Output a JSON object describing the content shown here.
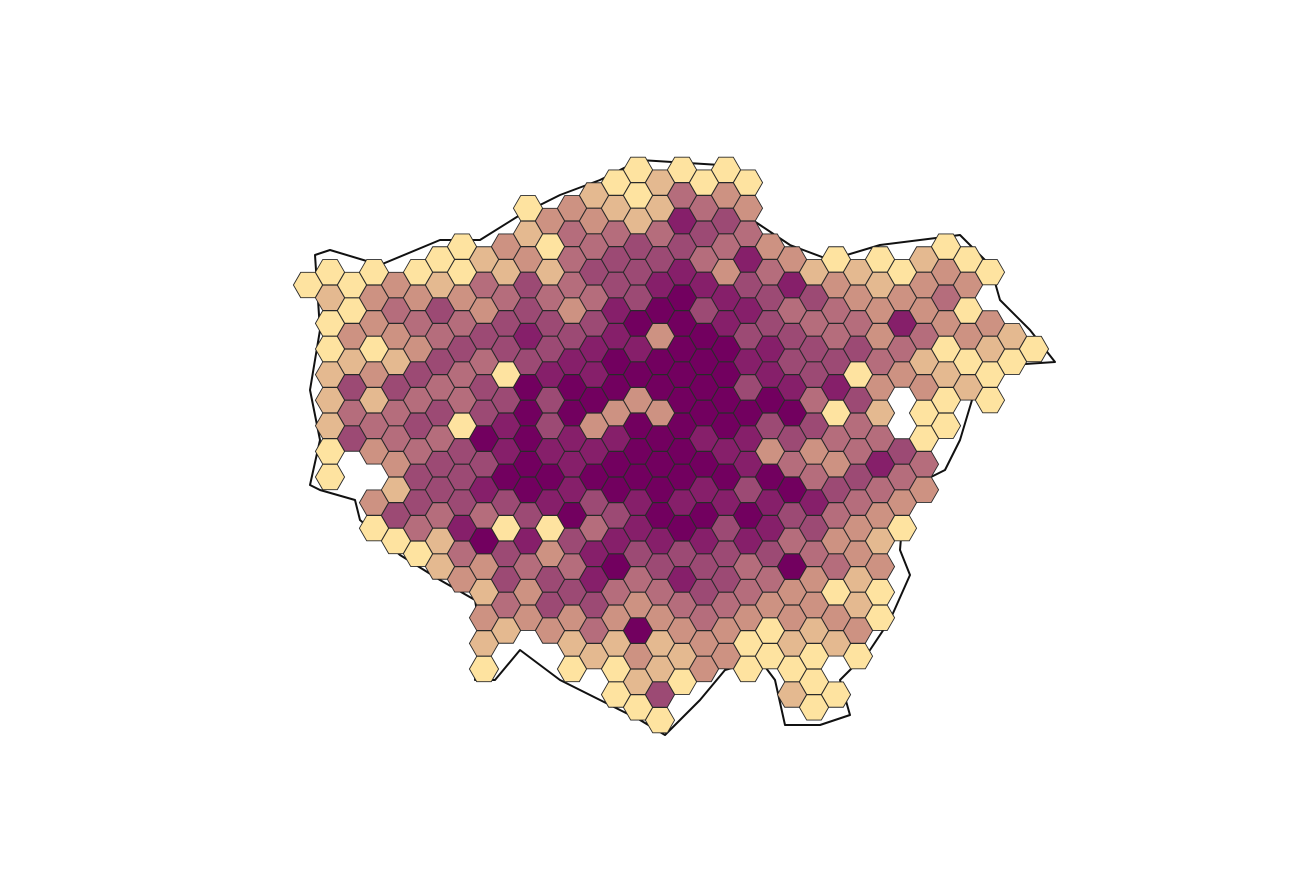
{
  "map": {
    "type": "hexbin",
    "palette": [
      "#fee3a0",
      "#e4b990",
      "#cd9282",
      "#b56d7c",
      "#9c4a74",
      "#861f6a",
      "#72005f"
    ],
    "columns": [
      [
        null,
        null,
        null,
        null,
        null,
        1,
        null,
        null,
        null,
        null,
        null,
        null,
        null,
        null,
        null,
        null,
        null,
        null,
        null,
        null,
        null,
        null,
        null
      ],
      [
        null,
        null,
        null,
        null,
        1,
        2,
        1,
        1,
        2,
        2,
        2,
        1,
        1,
        null,
        null,
        null,
        null,
        null,
        null,
        null,
        null,
        null,
        null
      ],
      [
        null,
        null,
        null,
        null,
        null,
        1,
        1,
        3,
        2,
        5,
        4,
        5,
        null,
        null,
        null,
        null,
        null,
        null,
        null,
        null,
        null,
        null,
        null
      ],
      [
        null,
        null,
        null,
        null,
        1,
        3,
        3,
        1,
        3,
        2,
        4,
        3,
        null,
        3,
        1,
        null,
        null,
        null,
        null,
        null,
        null,
        null,
        null
      ],
      [
        null,
        null,
        null,
        null,
        null,
        3,
        4,
        3,
        2,
        5,
        4,
        4,
        3,
        2,
        5,
        1,
        null,
        null,
        null,
        null,
        null,
        null,
        null
      ],
      [
        null,
        null,
        null,
        null,
        1,
        3,
        4,
        3,
        5,
        4,
        5,
        4,
        5,
        5,
        4,
        1,
        null,
        null,
        null,
        null,
        null,
        null,
        null
      ],
      [
        null,
        null,
        null,
        null,
        1,
        2,
        5,
        4,
        5,
        4,
        5,
        4,
        5,
        5,
        4,
        2,
        2,
        null,
        null,
        null,
        null,
        null,
        null
      ],
      [
        null,
        null,
        null,
        1,
        1,
        3,
        4,
        5,
        4,
        4,
        1,
        5,
        5,
        5,
        6,
        4,
        3,
        null,
        null,
        null,
        null,
        null,
        null
      ],
      [
        null,
        null,
        null,
        null,
        2,
        4,
        3,
        5,
        4,
        5,
        5,
        7,
        5,
        6,
        4,
        7,
        3,
        2,
        3,
        2,
        1,
        null,
        null
      ],
      [
        null,
        null,
        null,
        3,
        2,
        4,
        5,
        5,
        1,
        5,
        6,
        6,
        7,
        5,
        1,
        5,
        5,
        4,
        2,
        null,
        null,
        null,
        null
      ],
      [
        null,
        null,
        1,
        2,
        3,
        5,
        5,
        6,
        5,
        7,
        7,
        7,
        7,
        7,
        5,
        6,
        4,
        3,
        3,
        null,
        null,
        null,
        null
      ],
      [
        null,
        null,
        3,
        1,
        2,
        4,
        5,
        5,
        6,
        5,
        5,
        6,
        7,
        6,
        1,
        3,
        5,
        5,
        3,
        null,
        null,
        null,
        null
      ],
      [
        null,
        null,
        3,
        4,
        4,
        4,
        3,
        5,
        6,
        7,
        7,
        6,
        6,
        6,
        7,
        5,
        4,
        5,
        3,
        2,
        1,
        null,
        null
      ],
      [
        null,
        2,
        3,
        4,
        5,
        4,
        5,
        6,
        6,
        7,
        3,
        6,
        7,
        5,
        4,
        6,
        6,
        5,
        4,
        2,
        null,
        null,
        null
      ],
      [
        null,
        1,
        2,
        4,
        5,
        5,
        6,
        6,
        7,
        7,
        3,
        6,
        7,
        7,
        5,
        6,
        7,
        4,
        3,
        2,
        1,
        1,
        null
      ],
      [
        1,
        1,
        2,
        5,
        5,
        5,
        7,
        6,
        7,
        3,
        7,
        7,
        7,
        6,
        6,
        5,
        4,
        3,
        7,
        3,
        2,
        1,
        null
      ],
      [
        null,
        2,
        2,
        4,
        5,
        6,
        7,
        3,
        7,
        7,
        3,
        7,
        7,
        7,
        7,
        6,
        5,
        4,
        3,
        2,
        2,
        5,
        1
      ],
      [
        1,
        4,
        6,
        5,
        6,
        7,
        7,
        7,
        7,
        7,
        7,
        7,
        7,
        6,
        7,
        5,
        6,
        4,
        3,
        2,
        1,
        null,
        null
      ],
      [
        null,
        1,
        4,
        5,
        4,
        6,
        5,
        7,
        7,
        7,
        7,
        6,
        7,
        6,
        7,
        6,
        5,
        5,
        4,
        3,
        3,
        null,
        null
      ],
      [
        1,
        3,
        5,
        4,
        3,
        6,
        6,
        7,
        7,
        7,
        7,
        6,
        7,
        6,
        5,
        5,
        5,
        4,
        3,
        3,
        null,
        null,
        null
      ],
      [
        null,
        1,
        3,
        4,
        6,
        5,
        6,
        5,
        6,
        5,
        7,
        6,
        6,
        5,
        7,
        6,
        4,
        4,
        3,
        1,
        1,
        null,
        null
      ],
      [
        null,
        null,
        null,
        3,
        4,
        5,
        5,
        6,
        6,
        7,
        5,
        3,
        7,
        6,
        6,
        5,
        4,
        3,
        1,
        1,
        null,
        null,
        null
      ],
      [
        null,
        null,
        null,
        null,
        3,
        6,
        4,
        5,
        5,
        6,
        7,
        5,
        4,
        7,
        5,
        4,
        7,
        3,
        3,
        2,
        1,
        2,
        null
      ],
      [
        null,
        null,
        null,
        null,
        2,
        5,
        4,
        5,
        5,
        4,
        5,
        3,
        4,
        6,
        5,
        4,
        3,
        3,
        2,
        1,
        1,
        1,
        null
      ],
      [
        null,
        null,
        null,
        null,
        1,
        3,
        4,
        4,
        5,
        6,
        1,
        4,
        3,
        5,
        4,
        3,
        4,
        1,
        3,
        2,
        null,
        1,
        null
      ],
      [
        null,
        null,
        null,
        null,
        2,
        3,
        4,
        5,
        1,
        5,
        4,
        4,
        5,
        4,
        3,
        3,
        2,
        2,
        3,
        1,
        null,
        null,
        null
      ],
      [
        null,
        null,
        null,
        null,
        1,
        2,
        3,
        3,
        4,
        3,
        2,
        4,
        6,
        4,
        3,
        2,
        3,
        1,
        1,
        null,
        null,
        null,
        null
      ],
      [
        null,
        null,
        null,
        null,
        1,
        3,
        6,
        4,
        3,
        null,
        null,
        5,
        4,
        3,
        1,
        null,
        null,
        null,
        null,
        null,
        null,
        null,
        null
      ],
      [
        null,
        null,
        null,
        null,
        2,
        3,
        3,
        4,
        2,
        3,
        1,
        1,
        4,
        3,
        null,
        null,
        null,
        null,
        null,
        null,
        null,
        null,
        null
      ],
      [
        null,
        null,
        null,
        1,
        3,
        4,
        3,
        1,
        2,
        1,
        1,
        null,
        null,
        null,
        null,
        null,
        null,
        null,
        null,
        null,
        null,
        null,
        null
      ],
      [
        null,
        null,
        null,
        null,
        1,
        3,
        1,
        3,
        1,
        2,
        null,
        null,
        null,
        null,
        null,
        null,
        null,
        null,
        null,
        null,
        null,
        null,
        null
      ],
      [
        null,
        null,
        null,
        null,
        1,
        null,
        3,
        2,
        1,
        1,
        null,
        null,
        null,
        null,
        null,
        null,
        null,
        null,
        null,
        null,
        null,
        null,
        null
      ],
      [
        null,
        null,
        null,
        null,
        null,
        null,
        null,
        2,
        1,
        null,
        null,
        null,
        null,
        null,
        null,
        null,
        null,
        null,
        null,
        null,
        null,
        null,
        null
      ],
      [
        null,
        null,
        null,
        null,
        null,
        null,
        null,
        1,
        null,
        null,
        null,
        null,
        null,
        null,
        null,
        null,
        null,
        null,
        null,
        null,
        null,
        null,
        null
      ]
    ]
  }
}
